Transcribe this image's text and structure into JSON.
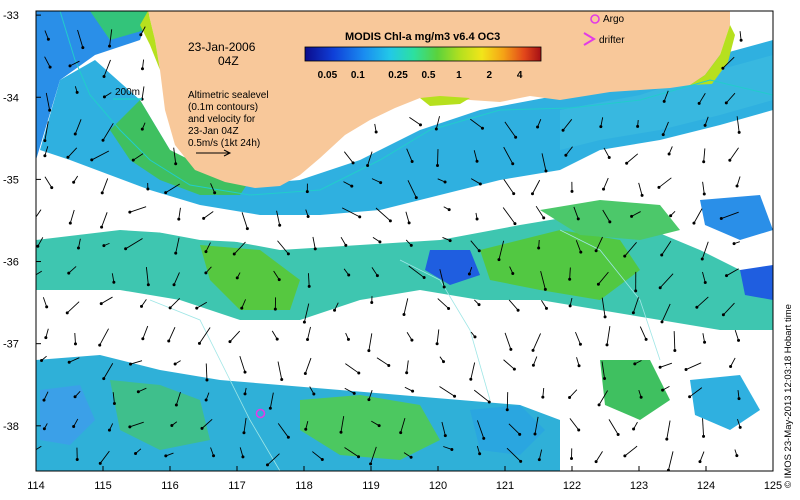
{
  "title": {
    "date": "23-Jan-2006",
    "hour": "04Z"
  },
  "colorbar": {
    "title": "MODIS Chl-a mg/m3 v6.4 OC3",
    "ticks": [
      "0.05",
      "0.1",
      "0.25",
      "0.5",
      "1",
      "2",
      "4"
    ],
    "colors": [
      "#0b0b8c",
      "#0f3fd8",
      "#1a8cf0",
      "#22c8e8",
      "#2ce0a0",
      "#5ad23c",
      "#b6e01e",
      "#f2e51a",
      "#f5a316",
      "#e2461a",
      "#a50f15"
    ]
  },
  "legend": {
    "argo": "Argo",
    "drifter": "drifter",
    "argo_color": "#e23be6",
    "drifter_color": "#e23be6"
  },
  "contour_label": "200m",
  "contour_color": "#22cccc",
  "altimetry_note": [
    "Altimetric sealevel",
    "(0.1m contours)",
    "and velocity for",
    "23-Jan 04Z",
    "0.5m/s (1kt 24h)"
  ],
  "axes": {
    "x_ticks": [
      "114",
      "115",
      "116",
      "117",
      "118",
      "119",
      "120",
      "121",
      "122",
      "123",
      "124",
      "125"
    ],
    "y_ticks": [
      "-33",
      "-34",
      "-35",
      "-36",
      "-37",
      "-38"
    ],
    "xlim": [
      114,
      125
    ],
    "ylim": [
      -38.55,
      -32.95
    ]
  },
  "colors": {
    "land": "#f8c89a",
    "chl_low": "#2a8fe8",
    "chl_mid": "#33c47a",
    "chl_high": "#5ad23c"
  },
  "credit": "© IMOS 23-May-2013 12:03:18 Hobart time",
  "argo_float": {
    "lon": 117.35,
    "lat": -37.85
  }
}
